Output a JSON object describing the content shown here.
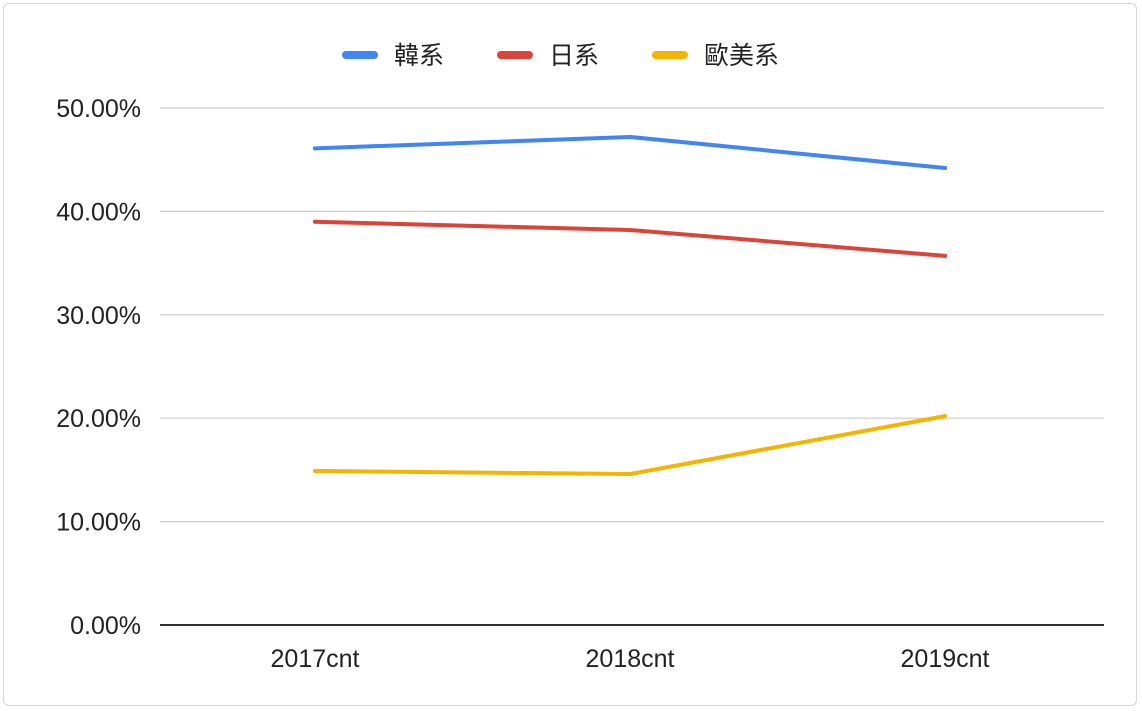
{
  "chart_data": {
    "type": "line",
    "categories": [
      "2017cnt",
      "2018cnt",
      "2019cnt"
    ],
    "series": [
      {
        "name": "韓系",
        "color": "#4285f4",
        "values": [
          0.461,
          0.472,
          0.442
        ]
      },
      {
        "name": "日系",
        "color": "#db4437",
        "values": [
          0.39,
          0.382,
          0.357
        ]
      },
      {
        "name": "歐美系",
        "color": "#f4b400",
        "values": [
          0.149,
          0.146,
          0.202
        ]
      }
    ],
    "y_ticks": [
      "0.00%",
      "10.00%",
      "20.00%",
      "30.00%",
      "40.00%",
      "50.00%"
    ],
    "ylim": [
      0,
      0.5
    ],
    "legend_position": "top",
    "grid": true,
    "colors": {
      "grid": "#cccccc",
      "axis": "#333333",
      "text": "#222222"
    }
  }
}
